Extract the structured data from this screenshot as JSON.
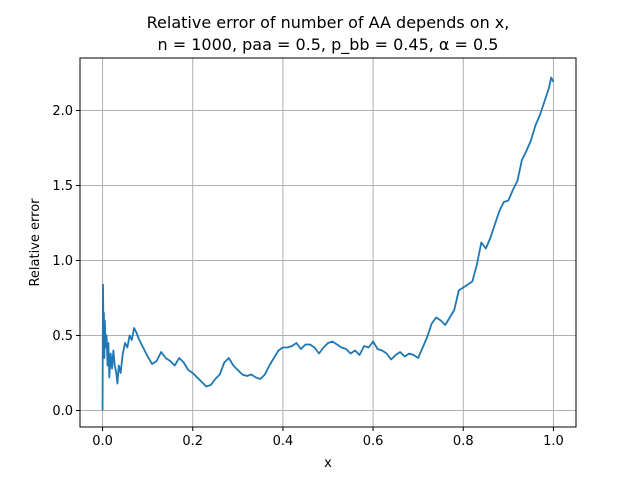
{
  "chart_data": {
    "type": "line",
    "title_line1": "Relative error of number of AA depends on x,",
    "title_line2": "n = 1000, paa = 0.5, p_bb = 0.45, α = 0.5",
    "xlabel": "x",
    "ylabel": "Relative error",
    "xlim": [
      -0.05,
      1.05
    ],
    "ylim": [
      -0.11,
      2.35
    ],
    "xticks": [
      0.0,
      0.2,
      0.4,
      0.6,
      0.8,
      1.0
    ],
    "xtick_labels": [
      "0.0",
      "0.2",
      "0.4",
      "0.6",
      "0.8",
      "1.0"
    ],
    "yticks": [
      0.0,
      0.5,
      1.0,
      1.5,
      2.0
    ],
    "ytick_labels": [
      "0.0",
      "0.5",
      "1.0",
      "1.5",
      "2.0"
    ],
    "grid": true,
    "series_color": "#1f77b4",
    "series": [
      {
        "x": [
          0.0,
          0.001,
          0.002,
          0.003,
          0.004,
          0.005,
          0.007,
          0.009,
          0.011,
          0.013,
          0.015,
          0.018,
          0.021,
          0.024,
          0.027,
          0.03,
          0.033,
          0.036,
          0.04,
          0.045,
          0.05,
          0.055,
          0.06,
          0.065,
          0.07,
          0.075,
          0.08,
          0.085,
          0.09,
          0.1,
          0.11,
          0.12,
          0.13,
          0.14,
          0.15,
          0.16,
          0.17,
          0.18,
          0.19,
          0.2,
          0.21,
          0.22,
          0.23,
          0.24,
          0.25,
          0.26,
          0.27,
          0.28,
          0.29,
          0.3,
          0.31,
          0.32,
          0.33,
          0.34,
          0.35,
          0.36,
          0.37,
          0.38,
          0.39,
          0.4,
          0.41,
          0.42,
          0.43,
          0.44,
          0.45,
          0.46,
          0.47,
          0.48,
          0.49,
          0.5,
          0.51,
          0.52,
          0.53,
          0.54,
          0.55,
          0.56,
          0.57,
          0.58,
          0.59,
          0.6,
          0.61,
          0.62,
          0.63,
          0.64,
          0.65,
          0.66,
          0.67,
          0.68,
          0.69,
          0.7,
          0.71,
          0.72,
          0.73,
          0.74,
          0.75,
          0.76,
          0.77,
          0.78,
          0.79,
          0.8,
          0.81,
          0.82,
          0.83,
          0.84,
          0.85,
          0.86,
          0.87,
          0.88,
          0.89,
          0.9,
          0.91,
          0.92,
          0.93,
          0.94,
          0.95,
          0.96,
          0.97,
          0.98,
          0.99,
          0.995,
          1.0
        ],
        "y": [
          0.0,
          0.84,
          0.55,
          0.65,
          0.35,
          0.6,
          0.42,
          0.5,
          0.3,
          0.45,
          0.22,
          0.38,
          0.28,
          0.4,
          0.3,
          0.26,
          0.18,
          0.3,
          0.25,
          0.38,
          0.45,
          0.42,
          0.5,
          0.47,
          0.55,
          0.52,
          0.48,
          0.45,
          0.42,
          0.36,
          0.31,
          0.33,
          0.39,
          0.35,
          0.33,
          0.3,
          0.35,
          0.32,
          0.27,
          0.25,
          0.22,
          0.19,
          0.16,
          0.17,
          0.21,
          0.24,
          0.32,
          0.35,
          0.3,
          0.27,
          0.24,
          0.23,
          0.24,
          0.22,
          0.21,
          0.24,
          0.3,
          0.35,
          0.4,
          0.42,
          0.42,
          0.43,
          0.45,
          0.41,
          0.44,
          0.44,
          0.42,
          0.38,
          0.42,
          0.45,
          0.46,
          0.44,
          0.42,
          0.41,
          0.38,
          0.4,
          0.37,
          0.43,
          0.42,
          0.46,
          0.41,
          0.4,
          0.38,
          0.34,
          0.37,
          0.39,
          0.36,
          0.38,
          0.37,
          0.35,
          0.42,
          0.49,
          0.58,
          0.62,
          0.6,
          0.57,
          0.62,
          0.67,
          0.8,
          0.82,
          0.84,
          0.86,
          0.97,
          1.12,
          1.08,
          1.15,
          1.24,
          1.33,
          1.39,
          1.4,
          1.47,
          1.53,
          1.67,
          1.73,
          1.8,
          1.9,
          1.97,
          2.06,
          2.15,
          2.22,
          2.19
        ]
      }
    ]
  }
}
